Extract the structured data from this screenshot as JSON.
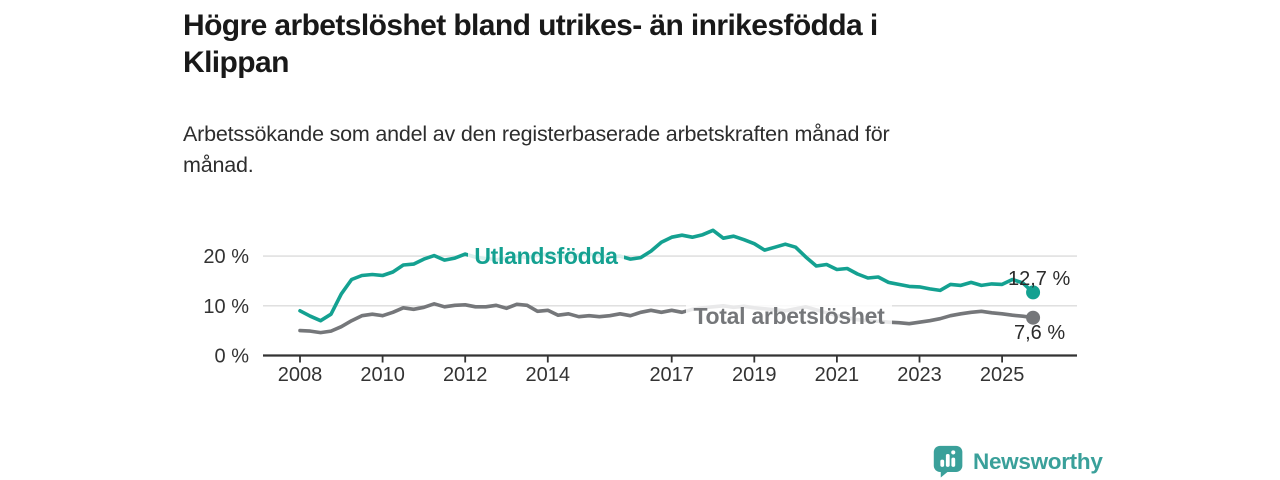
{
  "header": {
    "title": "Högre arbetslöshet bland utrikes- än inrikesfödda i\nKlippan",
    "subtitle": "Arbetssökande som andel av den registerbaserade arbetskraften månad för\nmånad."
  },
  "chart_data": {
    "type": "line",
    "title": "Högre arbetslöshet bland utrikes- än inrikesfödda i Klippan",
    "subtitle": "Arbetssökande som andel av den registerbaserade arbetskraften månad för månad.",
    "xlabel": "",
    "ylabel": "",
    "xlim": [
      2007.9,
      2026.1
    ],
    "ylim": [
      0,
      27
    ],
    "grid": "horizontal",
    "legend_position": "inline-labels-on-lines",
    "x_ticks": [
      2008,
      2010,
      2012,
      2014,
      2017,
      2019,
      2021,
      2023,
      2025
    ],
    "y_ticks": [
      {
        "value": 0,
        "label": "0 %"
      },
      {
        "value": 10,
        "label": "10 %"
      },
      {
        "value": 20,
        "label": "20 %"
      }
    ],
    "x": [
      2008.0,
      2008.25,
      2008.5,
      2008.75,
      2009.0,
      2009.25,
      2009.5,
      2009.75,
      2010.0,
      2010.25,
      2010.5,
      2010.75,
      2011.0,
      2011.25,
      2011.5,
      2011.75,
      2012.0,
      2012.25,
      2012.5,
      2012.75,
      2013.0,
      2013.25,
      2013.5,
      2013.75,
      2014.0,
      2014.25,
      2014.5,
      2014.75,
      2015.0,
      2015.25,
      2015.5,
      2015.75,
      2016.0,
      2016.25,
      2016.5,
      2016.75,
      2017.0,
      2017.25,
      2017.5,
      2017.75,
      2018.0,
      2018.25,
      2018.5,
      2018.75,
      2019.0,
      2019.25,
      2019.5,
      2019.75,
      2020.0,
      2020.25,
      2020.5,
      2020.75,
      2021.0,
      2021.25,
      2021.5,
      2021.75,
      2022.0,
      2022.25,
      2022.5,
      2022.75,
      2023.0,
      2023.25,
      2023.5,
      2023.75,
      2024.0,
      2024.25,
      2024.5,
      2024.75,
      2025.0,
      2025.25,
      2025.5,
      2025.75
    ],
    "series": [
      {
        "name": "Utlandsfödda",
        "color": "#14A191",
        "end_label": "12,7 %",
        "end_value": 12.7,
        "values": [
          9.0,
          7.9,
          7.0,
          8.3,
          12.4,
          15.3,
          16.1,
          16.3,
          16.1,
          16.8,
          18.2,
          18.4,
          19.4,
          20.1,
          19.2,
          19.6,
          20.4,
          19.8,
          19.5,
          19.3,
          19.6,
          20.0,
          19.7,
          20.2,
          20.4,
          20.0,
          19.8,
          20.2,
          20.4,
          20.0,
          19.8,
          20.0,
          19.4,
          19.7,
          21.0,
          22.8,
          23.8,
          24.2,
          23.8,
          24.3,
          25.2,
          23.6,
          24.0,
          23.3,
          22.5,
          21.2,
          21.8,
          22.4,
          21.8,
          19.8,
          18.0,
          18.3,
          17.3,
          17.5,
          16.4,
          15.6,
          15.8,
          14.7,
          14.3,
          13.9,
          13.8,
          13.4,
          13.1,
          14.3,
          14.1,
          14.7,
          14.1,
          14.4,
          14.3,
          15.3,
          14.6,
          12.7
        ]
      },
      {
        "name": "Total arbetslöshet",
        "color": "#75777A",
        "end_label": "7,6 %",
        "end_value": 7.6,
        "values": [
          5.0,
          4.9,
          4.6,
          4.9,
          5.8,
          7.0,
          8.0,
          8.3,
          8.0,
          8.7,
          9.6,
          9.3,
          9.7,
          10.4,
          9.8,
          10.1,
          10.2,
          9.8,
          9.8,
          10.1,
          9.5,
          10.3,
          10.1,
          8.9,
          9.1,
          8.1,
          8.4,
          7.8,
          8.0,
          7.8,
          8.0,
          8.4,
          8.0,
          8.7,
          9.1,
          8.7,
          9.1,
          8.7,
          9.3,
          9.6,
          9.8,
          10.0,
          9.7,
          9.9,
          9.6,
          9.4,
          9.2,
          9.0,
          9.4,
          9.8,
          9.2,
          8.6,
          8.0,
          7.6,
          7.2,
          7.0,
          6.9,
          6.7,
          6.6,
          6.4,
          6.7,
          7.0,
          7.4,
          8.0,
          8.4,
          8.7,
          8.9,
          8.6,
          8.4,
          8.1,
          7.9,
          7.6
        ]
      }
    ]
  },
  "colors": {
    "axis": "#333333",
    "grid": "#DCDCDC",
    "value_label_text": "#2B2B2B"
  },
  "footer": {
    "brand": "Newsworthy",
    "brand_color": "#3AA09A",
    "logo_icon": "bar-chart-speech-bubble-icon"
  }
}
